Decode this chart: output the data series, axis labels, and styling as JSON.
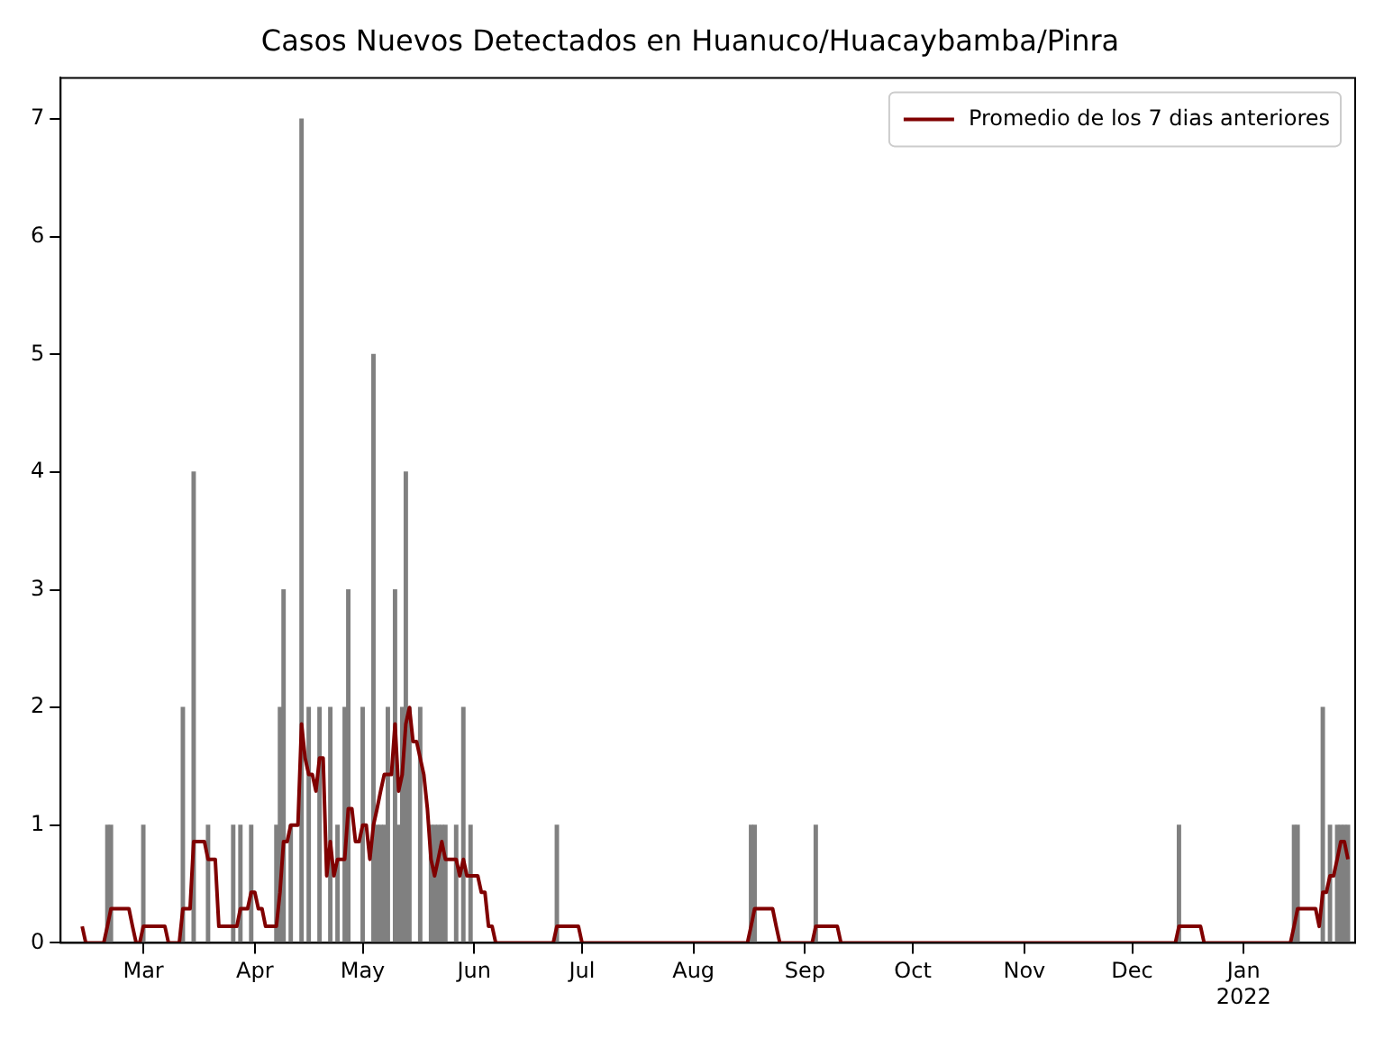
{
  "chart_data": {
    "type": "bar",
    "title": "Casos Nuevos Detectados en Huanuco/Huacaybamba/Pinra",
    "xlim": [
      "2021-02-06",
      "2022-02-01"
    ],
    "xticks": [
      {
        "value": "2021-03",
        "label": "Mar"
      },
      {
        "value": "2021-04",
        "label": "Apr"
      },
      {
        "value": "2021-05",
        "label": "May"
      },
      {
        "value": "2021-06",
        "label": "Jun"
      },
      {
        "value": "2021-07",
        "label": "Jul"
      },
      {
        "value": "2021-08",
        "label": "Aug"
      },
      {
        "value": "2021-09",
        "label": "Sep"
      },
      {
        "value": "2021-10",
        "label": "Oct"
      },
      {
        "value": "2021-11",
        "label": "Nov"
      },
      {
        "value": "2021-12",
        "label": "Dec"
      },
      {
        "value": "2022-01",
        "label": "Jan\n2022"
      }
    ],
    "ylim": [
      0,
      7.35
    ],
    "yticks": [
      0,
      1,
      2,
      3,
      4,
      5,
      6,
      7
    ],
    "grid": false,
    "legend": "top right",
    "series": [
      {
        "color": "#808080",
        "x": [
          "2021-02-19",
          "2021-02-20",
          "2021-03-01",
          "2021-03-12",
          "2021-03-15",
          "2021-03-19",
          "2021-03-26",
          "2021-03-28",
          "2021-03-31",
          "2021-04-07",
          "2021-04-08",
          "2021-04-09",
          "2021-04-11",
          "2021-04-14",
          "2021-04-16",
          "2021-04-19",
          "2021-04-22",
          "2021-04-24",
          "2021-04-26",
          "2021-04-27",
          "2021-05-01",
          "2021-05-04",
          "2021-05-05",
          "2021-05-06",
          "2021-05-07",
          "2021-05-08",
          "2021-05-10",
          "2021-05-11",
          "2021-05-12",
          "2021-05-13",
          "2021-05-14",
          "2021-05-17",
          "2021-05-20",
          "2021-05-21",
          "2021-05-22",
          "2021-05-23",
          "2021-05-24",
          "2021-05-27",
          "2021-05-29",
          "2021-05-31",
          "2021-06-24",
          "2021-08-17",
          "2021-08-18",
          "2021-09-04",
          "2021-12-14",
          "2022-01-15",
          "2022-01-16",
          "2022-01-23",
          "2022-01-25",
          "2022-01-27",
          "2022-01-28",
          "2022-01-29",
          "2022-01-30"
        ],
        "values": [
          1,
          1,
          1,
          2,
          4,
          1,
          1,
          1,
          1,
          1,
          2,
          3,
          1,
          7,
          2,
          2,
          2,
          1,
          2,
          3,
          2,
          5,
          1,
          1,
          1,
          2,
          3,
          1,
          2,
          4,
          2,
          2,
          1,
          1,
          1,
          1,
          1,
          1,
          2,
          1,
          1,
          1,
          1,
          1,
          1,
          1,
          1,
          2,
          1,
          1,
          1,
          1,
          1
        ]
      },
      {
        "type": "line",
        "name": "Promedio de los 7 dias anteriores",
        "color": "#800000",
        "x": [
          "2021-02-12",
          "2021-02-13",
          "2021-02-18",
          "2021-02-19",
          "2021-02-20",
          "2021-02-25",
          "2021-02-26",
          "2021-02-27",
          "2021-02-28",
          "2021-03-01",
          "2021-03-07",
          "2021-03-08",
          "2021-03-11",
          "2021-03-12",
          "2021-03-14",
          "2021-03-15",
          "2021-03-18",
          "2021-03-19",
          "2021-03-21",
          "2021-03-22",
          "2021-03-27",
          "2021-03-28",
          "2021-03-30",
          "2021-03-31",
          "2021-04-01",
          "2021-04-02",
          "2021-04-03",
          "2021-04-04",
          "2021-04-07",
          "2021-04-08",
          "2021-04-09",
          "2021-04-10",
          "2021-04-11",
          "2021-04-13",
          "2021-04-14",
          "2021-04-15",
          "2021-04-16",
          "2021-04-17",
          "2021-04-18",
          "2021-04-19",
          "2021-04-20",
          "2021-04-21",
          "2021-04-22",
          "2021-04-23",
          "2021-04-24",
          "2021-04-26",
          "2021-04-27",
          "2021-04-28",
          "2021-04-29",
          "2021-04-30",
          "2021-05-01",
          "2021-05-02",
          "2021-05-03",
          "2021-05-04",
          "2021-05-05",
          "2021-05-06",
          "2021-05-07",
          "2021-05-09",
          "2021-05-10",
          "2021-05-11",
          "2021-05-12",
          "2021-05-13",
          "2021-05-14",
          "2021-05-15",
          "2021-05-16",
          "2021-05-17",
          "2021-05-18",
          "2021-05-19",
          "2021-05-20",
          "2021-05-21",
          "2021-05-22",
          "2021-05-23",
          "2021-05-24",
          "2021-05-27",
          "2021-05-28",
          "2021-05-29",
          "2021-05-30",
          "2021-06-02",
          "2021-06-03",
          "2021-06-04",
          "2021-06-05",
          "2021-06-06",
          "2021-06-07",
          "2021-06-23",
          "2021-06-24",
          "2021-06-30",
          "2021-07-01",
          "2021-08-16",
          "2021-08-17",
          "2021-08-18",
          "2021-08-23",
          "2021-08-24",
          "2021-08-25",
          "2021-09-03",
          "2021-09-04",
          "2021-09-10",
          "2021-09-11",
          "2021-12-13",
          "2021-12-14",
          "2021-12-20",
          "2021-12-21",
          "2022-01-14",
          "2022-01-15",
          "2022-01-16",
          "2022-01-21",
          "2022-01-22",
          "2022-01-23",
          "2022-01-24",
          "2022-01-25",
          "2022-01-26",
          "2022-01-27",
          "2022-01-28",
          "2022-01-29",
          "2022-01-30"
        ],
        "values": [
          0.14,
          0,
          0,
          0.14,
          0.29,
          0.29,
          0.14,
          0,
          0,
          0.14,
          0.14,
          0,
          0,
          0.29,
          0.29,
          0.86,
          0.86,
          0.71,
          0.71,
          0.14,
          0.14,
          0.29,
          0.29,
          0.43,
          0.43,
          0.29,
          0.29,
          0.14,
          0.14,
          0.43,
          0.86,
          0.86,
          1,
          1,
          1.86,
          1.57,
          1.43,
          1.43,
          1.29,
          1.57,
          1.57,
          0.57,
          0.86,
          0.57,
          0.71,
          0.71,
          1.14,
          1.14,
          0.86,
          0.86,
          1,
          1,
          0.71,
          1,
          1.14,
          1.29,
          1.43,
          1.43,
          1.86,
          1.29,
          1.43,
          1.86,
          2,
          1.71,
          1.71,
          1.57,
          1.43,
          1.14,
          0.71,
          0.57,
          0.71,
          0.86,
          0.71,
          0.71,
          0.57,
          0.71,
          0.57,
          0.57,
          0.43,
          0.43,
          0.14,
          0.14,
          0,
          0,
          0.14,
          0.14,
          0,
          0,
          0.14,
          0.29,
          0.29,
          0.14,
          0,
          0,
          0.14,
          0.14,
          0,
          0,
          0.14,
          0.14,
          0,
          0,
          0.14,
          0.29,
          0.29,
          0.14,
          0.43,
          0.43,
          0.57,
          0.57,
          0.71,
          0.86,
          0.86,
          0.71
        ]
      }
    ]
  }
}
